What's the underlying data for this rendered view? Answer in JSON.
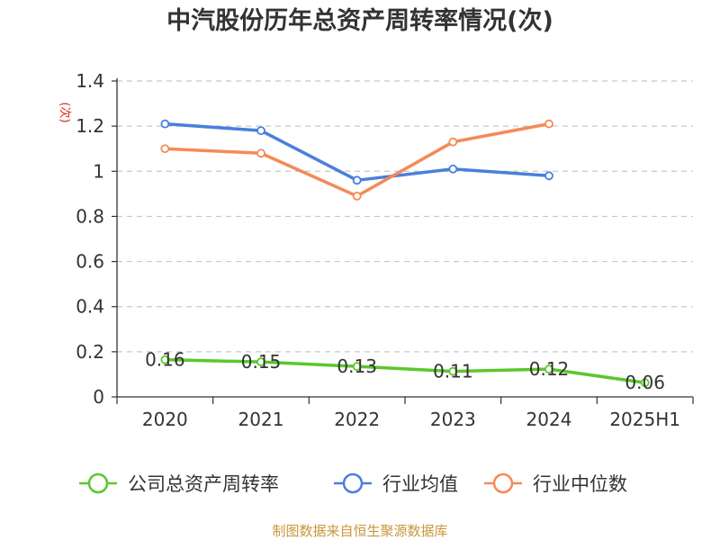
{
  "chart_data": {
    "type": "line",
    "title": "中汽股份历年总资产周转率情况(次)",
    "ylabel": "(次)",
    "xlabel": "",
    "categories": [
      "2020",
      "2021",
      "2022",
      "2023",
      "2024",
      "2025H1"
    ],
    "y_ticks": [
      "0",
      "0.2",
      "0.4",
      "0.6",
      "0.8",
      "1",
      "1.2",
      "1.4"
    ],
    "ylim": [
      0,
      1.4
    ],
    "grid": "horizontal dashed",
    "legend_position": "bottom",
    "series": [
      {
        "name": "公司总资产周转率",
        "color": "#5cc72c",
        "values": [
          0.165,
          0.155,
          0.135,
          0.113,
          0.123,
          0.063
        ],
        "labels": [
          "0.16",
          "0.15",
          "0.13",
          "0.11",
          "0.12",
          "0.06"
        ]
      },
      {
        "name": "行业均值",
        "color": "#4a7fdc",
        "values": [
          1.21,
          1.18,
          0.96,
          1.01,
          0.98,
          null
        ]
      },
      {
        "name": "行业中位数",
        "color": "#f58a57",
        "values": [
          1.1,
          1.08,
          0.89,
          1.13,
          1.21,
          null
        ]
      }
    ]
  },
  "source": {
    "text": "制图数据来自恒生聚源数据库",
    "color": "#c8963c"
  },
  "colors": {
    "axis": "#333333",
    "grid": "#c8c8c8",
    "unit_label": "#e0201b"
  }
}
